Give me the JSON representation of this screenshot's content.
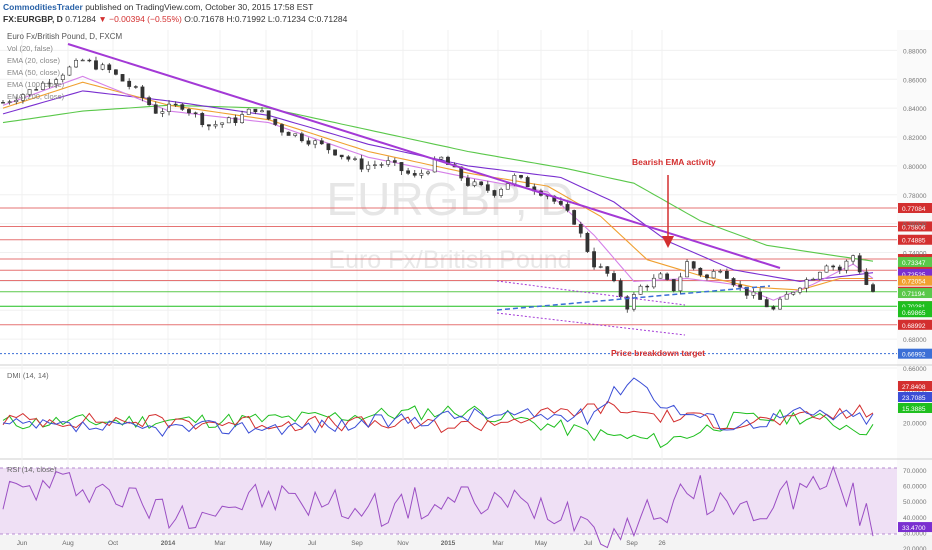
{
  "header": {
    "author": "CommoditiesTrader",
    "published": "published on TradingView.com, October 30, 2015 17:58 EST",
    "symbol": "FX:EURGBP, D",
    "last": "0.71284",
    "change": "−0.00394 (−0.55%)",
    "ohlc": "O:0.71678 H:0.71992 L:0.71234 C:0.71284"
  },
  "main_pane": {
    "legend": [
      "Euro Fx/British Pound, D, FXCM",
      "Vol (20, false)",
      "EMA (20, close)",
      "EMA (50, close)",
      "EMA (100, close)",
      "EMA (200, close)"
    ],
    "watermark_1": "EURGBP, D",
    "watermark_2": "Euro Fx/British Pound",
    "annotation_top": "Bearish EMA activity",
    "annotation_bottom": "Price breakdown target"
  },
  "dmi_label": "DMI (14, 14)",
  "rsi_label": "RSI (14, close)",
  "colors": {
    "purple_trend": "#a339d6",
    "annotation_red": "#d32f2f",
    "price": "#333333",
    "ema_fast": "#d580e8",
    "ema_mid": "#f0a030",
    "ema_slow": "#7a2fd0",
    "ema_200": "#5ac84a",
    "rsi_fill": "#efe0f5",
    "blue_dash": "#3b6fd6"
  },
  "chart_data": [
    {
      "type": "line",
      "title": "Euro Fx/British Pound, D, FXCM",
      "ylim": [
        0.66,
        0.89
      ],
      "y_ticks": [
        "0.88000",
        "0.86000",
        "0.84000",
        "0.82000",
        "0.80000",
        "0.78000",
        "0.76000",
        "0.74000",
        "0.72000",
        "0.70000",
        "0.68000",
        "0.66000"
      ],
      "x_ticks": [
        "Jun",
        "Aug",
        "Oct",
        "2014",
        "Mar",
        "May",
        "Jul",
        "Sep",
        "Nov",
        "2015",
        "Mar",
        "May",
        "Jul",
        "Sep",
        "26"
      ],
      "price_anchors": [
        [
          0,
          0.844
        ],
        [
          4,
          0.852
        ],
        [
          8,
          0.862
        ],
        [
          12,
          0.873
        ],
        [
          16,
          0.866
        ],
        [
          20,
          0.852
        ],
        [
          23,
          0.838
        ],
        [
          27,
          0.842
        ],
        [
          31,
          0.828
        ],
        [
          35,
          0.832
        ],
        [
          38,
          0.84
        ],
        [
          42,
          0.825
        ],
        [
          46,
          0.818
        ],
        [
          50,
          0.81
        ],
        [
          54,
          0.8
        ],
        [
          58,
          0.802
        ],
        [
          62,
          0.792
        ],
        [
          66,
          0.805
        ],
        [
          70,
          0.788
        ],
        [
          74,
          0.782
        ],
        [
          77,
          0.792
        ],
        [
          82,
          0.78
        ],
        [
          86,
          0.762
        ],
        [
          89,
          0.732
        ],
        [
          91,
          0.725
        ],
        [
          94,
          0.703
        ],
        [
          96,
          0.716
        ],
        [
          99,
          0.723
        ],
        [
          101,
          0.715
        ],
        [
          103,
          0.733
        ],
        [
          106,
          0.722
        ],
        [
          108,
          0.73
        ],
        [
          111,
          0.715
        ],
        [
          114,
          0.707
        ],
        [
          116,
          0.7
        ],
        [
          118,
          0.71
        ],
        [
          120,
          0.718
        ],
        [
          122,
          0.724
        ],
        [
          124,
          0.733
        ],
        [
          126,
          0.728
        ],
        [
          128,
          0.738
        ],
        [
          130,
          0.718
        ],
        [
          131,
          0.713
        ]
      ],
      "ema_fast_anchors": [
        [
          0,
          0.842
        ],
        [
          12,
          0.862
        ],
        [
          25,
          0.838
        ],
        [
          40,
          0.83
        ],
        [
          55,
          0.806
        ],
        [
          70,
          0.792
        ],
        [
          82,
          0.782
        ],
        [
          89,
          0.752
        ],
        [
          95,
          0.72
        ],
        [
          103,
          0.722
        ],
        [
          110,
          0.718
        ],
        [
          116,
          0.707
        ],
        [
          122,
          0.718
        ],
        [
          128,
          0.732
        ],
        [
          131,
          0.722
        ]
      ],
      "ema_mid_anchors": [
        [
          0,
          0.84
        ],
        [
          12,
          0.858
        ],
        [
          25,
          0.842
        ],
        [
          40,
          0.832
        ],
        [
          55,
          0.81
        ],
        [
          70,
          0.795
        ],
        [
          82,
          0.786
        ],
        [
          90,
          0.765
        ],
        [
          97,
          0.735
        ],
        [
          105,
          0.724
        ],
        [
          113,
          0.716
        ],
        [
          120,
          0.714
        ],
        [
          126,
          0.722
        ],
        [
          131,
          0.722
        ]
      ],
      "ema_slow_anchors": [
        [
          0,
          0.836
        ],
        [
          12,
          0.852
        ],
        [
          25,
          0.845
        ],
        [
          40,
          0.835
        ],
        [
          55,
          0.815
        ],
        [
          70,
          0.8
        ],
        [
          84,
          0.792
        ],
        [
          92,
          0.775
        ],
        [
          100,
          0.748
        ],
        [
          110,
          0.728
        ],
        [
          120,
          0.72
        ],
        [
          131,
          0.726
        ]
      ],
      "ema_200_anchors": [
        [
          0,
          0.83
        ],
        [
          12,
          0.838
        ],
        [
          25,
          0.842
        ],
        [
          40,
          0.84
        ],
        [
          55,
          0.825
        ],
        [
          70,
          0.81
        ],
        [
          85,
          0.798
        ],
        [
          95,
          0.788
        ],
        [
          105,
          0.762
        ],
        [
          115,
          0.745
        ],
        [
          125,
          0.738
        ],
        [
          131,
          0.734
        ]
      ],
      "hlines": [
        {
          "value": 0.77084,
          "label": "0.77084"
        },
        {
          "value": 0.75806,
          "label": "0.75806"
        },
        {
          "value": 0.74885,
          "label": "0.74885"
        },
        {
          "value": 0.7355,
          "label": "0.73550"
        },
        {
          "value": 0.7277,
          "label": "0.72770"
        },
        {
          "value": 0.72058,
          "label": "0.72058"
        },
        {
          "value": 0.71284,
          "label": "0.71284"
        },
        {
          "value": 0.70281,
          "label": "0.70281"
        },
        {
          "value": 0.68992,
          "label": "0.68992"
        }
      ],
      "price_tags": [
        {
          "value": 0.73347,
          "label": "0.73347",
          "color": "#5ac84a"
        },
        {
          "value": 0.72525,
          "label": "0.72525",
          "color": "#7a2fd0"
        },
        {
          "value": 0.72054,
          "label": "0.72054",
          "color": "#f0a030"
        },
        {
          "value": 0.71194,
          "label": "0.71194",
          "color": "#5ac84a"
        },
        {
          "value": 0.70281,
          "label": "0.70281",
          "color": "#1fbf1f"
        },
        {
          "value": 0.69865,
          "label": "0.69865",
          "color": "#1fbf1f"
        },
        {
          "value": 0.66992,
          "label": "0.66992",
          "color": "#3b6fd6"
        }
      ]
    },
    {
      "type": "line",
      "title": "DMI (14, 14)",
      "ylim": [
        0,
        55
      ],
      "y_ticks": [
        "40.0000",
        "20.0000"
      ],
      "labels": [
        {
          "value": 27.8408,
          "label": "27.8408",
          "color": "#d32f2f"
        },
        {
          "value": 23.7085,
          "label": "23.7085",
          "color": "#3b4ed6"
        },
        {
          "value": 15.3885,
          "label": "15.3885",
          "color": "#1fbf1f"
        }
      ]
    },
    {
      "type": "line",
      "title": "RSI (14, close)",
      "ylim": [
        15,
        75
      ],
      "y_ticks": [
        "70.0000",
        "60.0000",
        "50.0000",
        "40.0000",
        "30.0000",
        "20.0000"
      ],
      "band": [
        30,
        70
      ],
      "last": {
        "value": 33.47,
        "label": "33.4700"
      }
    }
  ]
}
